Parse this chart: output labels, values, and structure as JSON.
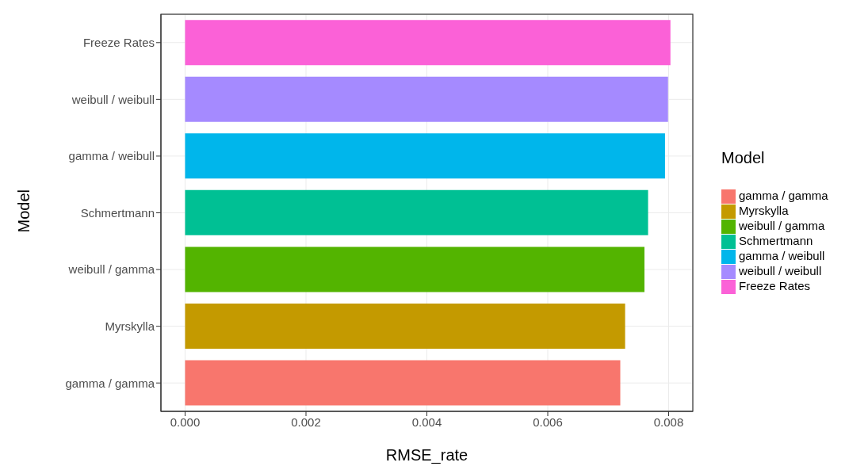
{
  "chart_data": {
    "type": "bar",
    "orientation": "horizontal",
    "stacked": true,
    "xlabel": "RMSE_rate",
    "ylabel": "Model",
    "legend_title": "Model",
    "legend": "right",
    "grid": true,
    "categories": [
      "Freeze Rates",
      "weibull / weibull",
      "gamma / weibull",
      "Schmertmann",
      "weibull / gamma",
      "Myrskylla",
      "gamma / gamma"
    ],
    "series": [
      {
        "name": "gamma / gamma",
        "color": "#f8766d",
        "values": [
          null,
          null,
          null,
          null,
          null,
          null,
          0.0072
        ]
      },
      {
        "name": "Myrskylla",
        "color": "#c49a00",
        "values": [
          null,
          null,
          null,
          null,
          null,
          0.00728,
          null
        ]
      },
      {
        "name": "weibull / gamma",
        "color": "#53b400",
        "values": [
          null,
          null,
          null,
          null,
          0.0076,
          null,
          null
        ]
      },
      {
        "name": "Schmertmann",
        "color": "#00c094",
        "values": [
          null,
          null,
          null,
          0.00766,
          null,
          null,
          null
        ]
      },
      {
        "name": "gamma / weibull",
        "color": "#00b6eb",
        "values": [
          null,
          null,
          0.00794,
          null,
          null,
          null,
          null
        ]
      },
      {
        "name": "weibull / weibull",
        "color": "#a58aff",
        "values": [
          null,
          0.00799,
          null,
          null,
          null,
          null,
          null
        ]
      },
      {
        "name": "Freeze Rates",
        "color": "#fb61d7",
        "values": [
          0.00803,
          null,
          null,
          null,
          null,
          null,
          null
        ]
      }
    ],
    "xlim": [
      -0.0004,
      0.0084
    ],
    "xticks": [
      {
        "value": 0,
        "label": "0.000"
      },
      {
        "value": 0.002,
        "label": "0.002"
      },
      {
        "value": 0.004,
        "label": "0.004"
      },
      {
        "value": 0.006,
        "label": "0.006"
      },
      {
        "value": 0.008,
        "label": "0.008"
      }
    ]
  }
}
